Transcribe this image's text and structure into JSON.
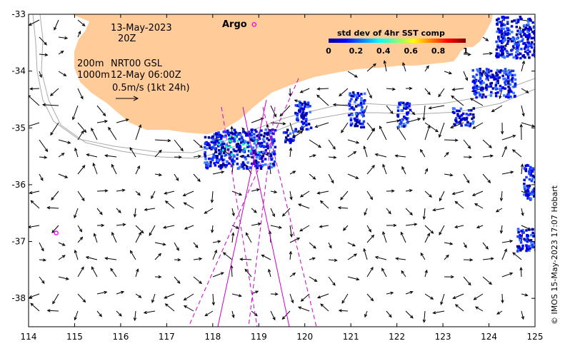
{
  "map": {
    "date": "13-May-2023",
    "hour": "20Z",
    "depth_shallow": "200m",
    "depth_deep": "1000m",
    "product": "NRT00 GSL",
    "analysis_time": "12-May 06:00Z",
    "scale_arrow_label": "0.5m/s (1kt 24h)",
    "argo_label": "Argo",
    "credit": "© IMOS 15-May-2023 17:07 Hobart",
    "land_color": "#ffcc99",
    "argo_color": "#ff00ff",
    "track_color": "#cc00cc"
  },
  "axes": {
    "x_ticks": [
      "114",
      "115",
      "116",
      "117",
      "118",
      "119",
      "120",
      "121",
      "122",
      "123",
      "124",
      "125"
    ],
    "y_ticks": [
      "-33",
      "-34",
      "-35",
      "-36",
      "-37",
      "-38"
    ],
    "lon_range": [
      114,
      125
    ],
    "lat_range": [
      -38.5,
      -33
    ]
  },
  "colorbar": {
    "title": "std dev of 4hr SST comp",
    "ticks": [
      "0",
      "0.2",
      "0.4",
      "0.6",
      "0.8",
      "1"
    ],
    "range": [
      0,
      1
    ]
  },
  "argo_floats": [
    {
      "lon": 118.9,
      "lat": -33.18
    },
    {
      "lon": 114.6,
      "lat": -36.85
    }
  ]
}
